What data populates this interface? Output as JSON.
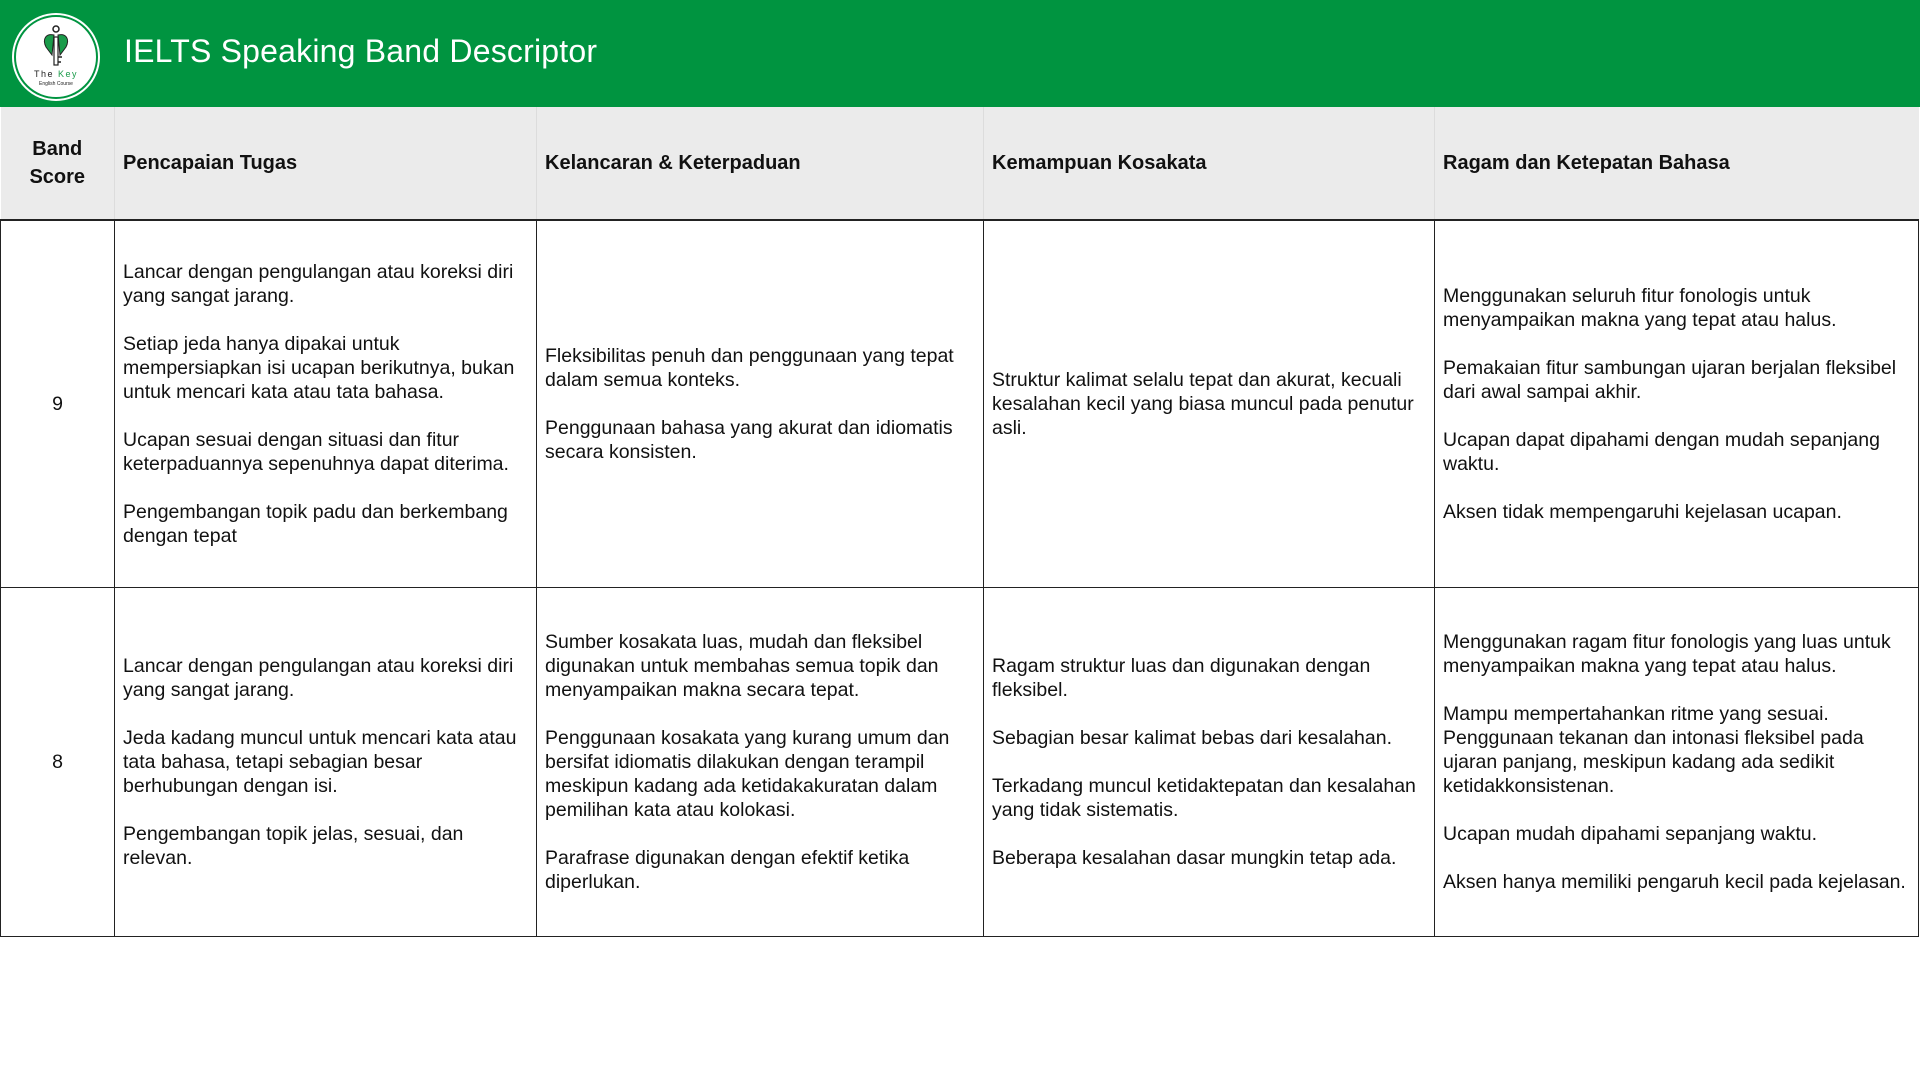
{
  "header": {
    "title": "IELTS Speaking Band Descriptor",
    "logo_text": "The Key English Course",
    "background_color": "#009440"
  },
  "table": {
    "columns": [
      "Band Score",
      "Pencapaian Tugas",
      "Kelancaran & Keterpaduan",
      "Kemampuan Kosakata",
      "Ragam dan Ketepatan Bahasa"
    ],
    "rows": [
      {
        "band": "9",
        "cells": [
          [
            "Lancar dengan pengulangan atau koreksi diri yang sangat jarang.",
            "Setiap jeda hanya dipakai untuk mempersiapkan isi ucapan berikutnya, bukan untuk mencari kata atau tata bahasa.",
            "Ucapan sesuai dengan situasi dan fitur keterpaduannya sepenuhnya dapat diterima.",
            "Pengembangan topik padu dan berkembang dengan tepat"
          ],
          [
            "Fleksibilitas penuh dan penggunaan yang tepat dalam semua konteks.",
            "Penggunaan bahasa yang akurat dan idiomatis secara konsisten."
          ],
          [
            "Struktur kalimat selalu tepat dan akurat, kecuali kesalahan kecil yang biasa muncul pada penutur asli."
          ],
          [
            "Menggunakan seluruh fitur fonologis untuk menyampaikan makna yang tepat atau halus.",
            "Pemakaian fitur sambungan ujaran berjalan fleksibel dari awal sampai akhir.",
            "Ucapan dapat dipahami dengan mudah sepanjang waktu.",
            "Aksen tidak mempengaruhi kejelasan ucapan."
          ]
        ]
      },
      {
        "band": "8",
        "cells": [
          [
            "Lancar dengan pengulangan atau koreksi diri yang sangat jarang.",
            "Jeda kadang muncul untuk mencari kata atau tata bahasa, tetapi sebagian besar berhubungan dengan isi.",
            "Pengembangan topik jelas, sesuai, dan relevan."
          ],
          [
            "Sumber kosakata luas, mudah dan fleksibel digunakan untuk membahas semua topik dan menyampaikan makna secara tepat.",
            "Penggunaan kosakata yang kurang umum dan bersifat idiomatis dilakukan dengan terampil meskipun kadang ada ketidakakuratan dalam pemilihan kata atau kolokasi.",
            "Parafrase digunakan dengan efektif ketika diperlukan."
          ],
          [
            "Ragam struktur luas dan digunakan dengan fleksibel.",
            "Sebagian besar kalimat bebas dari kesalahan.",
            "Terkadang muncul ketidaktepatan dan kesalahan yang tidak sistematis.",
            "Beberapa kesalahan dasar mungkin tetap ada."
          ],
          [
            "Menggunakan ragam fitur fonologis yang luas untuk menyampaikan makna yang tepat atau halus.",
            "Mampu mempertahankan ritme yang sesuai. Penggunaan tekanan dan intonasi fleksibel pada ujaran panjang, meskipun kadang ada sedikit ketidakkonsistenan.",
            "Ucapan mudah dipahami sepanjang waktu.",
            "Aksen hanya memiliki pengaruh kecil pada kejelasan."
          ]
        ]
      }
    ]
  }
}
